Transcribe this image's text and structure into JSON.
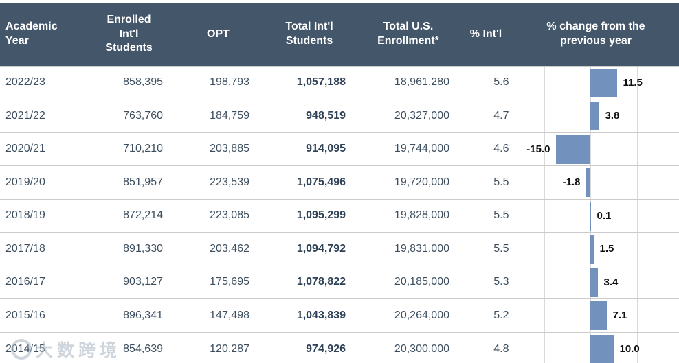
{
  "colors": {
    "header_bg": "#43566A",
    "header_text": "#FFFFFF",
    "body_text": "#3D4F5F",
    "total_text": "#2E4156",
    "row_border": "#CBCBCB",
    "gridline": "#DADADA",
    "bar_color": "#7291BD",
    "bar_label": "#0F0F0F"
  },
  "watermark": {
    "text": "大数跨境",
    "logo": "circle-logo"
  },
  "table": {
    "columns": [
      {
        "id": "year",
        "label": "Academic Year"
      },
      {
        "id": "enrolled",
        "label": "Enrolled Int'l Students"
      },
      {
        "id": "opt",
        "label": "OPT"
      },
      {
        "id": "total_intl",
        "label": "Total Int'l Students"
      },
      {
        "id": "total_us",
        "label": "Total U.S. Enrollment*"
      },
      {
        "id": "pct_intl",
        "label": "% Int'l"
      },
      {
        "id": "pct_change",
        "label": "% change from the previous year"
      }
    ],
    "rows": [
      {
        "year": "2022/23",
        "enrolled": "858,395",
        "opt": "198,793",
        "total_intl": "1,057,188",
        "total_us": "18,961,280",
        "pct_intl": "5.6",
        "pct_change": 11.5,
        "pct_change_label": "11.5"
      },
      {
        "year": "2021/22",
        "enrolled": "763,760",
        "opt": "184,759",
        "total_intl": "948,519",
        "total_us": "20,327,000",
        "pct_intl": "4.7",
        "pct_change": 3.8,
        "pct_change_label": "3.8"
      },
      {
        "year": "2020/21",
        "enrolled": "710,210",
        "opt": "203,885",
        "total_intl": "914,095",
        "total_us": "19,744,000",
        "pct_intl": "4.6",
        "pct_change": -15.0,
        "pct_change_label": "-15.0"
      },
      {
        "year": "2019/20",
        "enrolled": "851,957",
        "opt": "223,539",
        "total_intl": "1,075,496",
        "total_us": "19,720,000",
        "pct_intl": "5.5",
        "pct_change": -1.8,
        "pct_change_label": "-1.8"
      },
      {
        "year": "2018/19",
        "enrolled": "872,214",
        "opt": "223,085",
        "total_intl": "1,095,299",
        "total_us": "19,828,000",
        "pct_intl": "5.5",
        "pct_change": 0.1,
        "pct_change_label": "0.1"
      },
      {
        "year": "2017/18",
        "enrolled": "891,330",
        "opt": "203,462",
        "total_intl": "1,094,792",
        "total_us": "19,831,000",
        "pct_intl": "5.5",
        "pct_change": 1.5,
        "pct_change_label": "1.5"
      },
      {
        "year": "2016/17",
        "enrolled": "903,127",
        "opt": "175,695",
        "total_intl": "1,078,822",
        "total_us": "20,185,000",
        "pct_intl": "5.3",
        "pct_change": 3.4,
        "pct_change_label": "3.4"
      },
      {
        "year": "2015/16",
        "enrolled": "896,341",
        "opt": "147,498",
        "total_intl": "1,043,839",
        "total_us": "20,264,000",
        "pct_intl": "5.2",
        "pct_change": 7.1,
        "pct_change_label": "7.1"
      },
      {
        "year": "2014/15",
        "enrolled": "854,639",
        "opt": "120,287",
        "total_intl": "974,926",
        "total_us": "20,300,000",
        "pct_intl": "4.8",
        "pct_change": 10.0,
        "pct_change_label": "10.0"
      }
    ]
  },
  "chart_data": {
    "type": "bar",
    "orientation": "horizontal",
    "title": "% change from the previous year",
    "categories": [
      "2022/23",
      "2021/22",
      "2020/21",
      "2019/20",
      "2018/19",
      "2017/18",
      "2016/17",
      "2015/16",
      "2014/15"
    ],
    "values": [
      11.5,
      3.8,
      -15.0,
      -1.8,
      0.1,
      1.5,
      3.4,
      7.1,
      10.0
    ],
    "value_labels": [
      "11.5",
      "3.8",
      "-15.0",
      "-1.8",
      "0.1",
      "1.5",
      "3.4",
      "7.1",
      "10.0"
    ],
    "axis_range": [
      -33,
      39
    ],
    "gridline_step": 20,
    "grid": true,
    "legend": "none",
    "bar_color": "#7291BD"
  }
}
